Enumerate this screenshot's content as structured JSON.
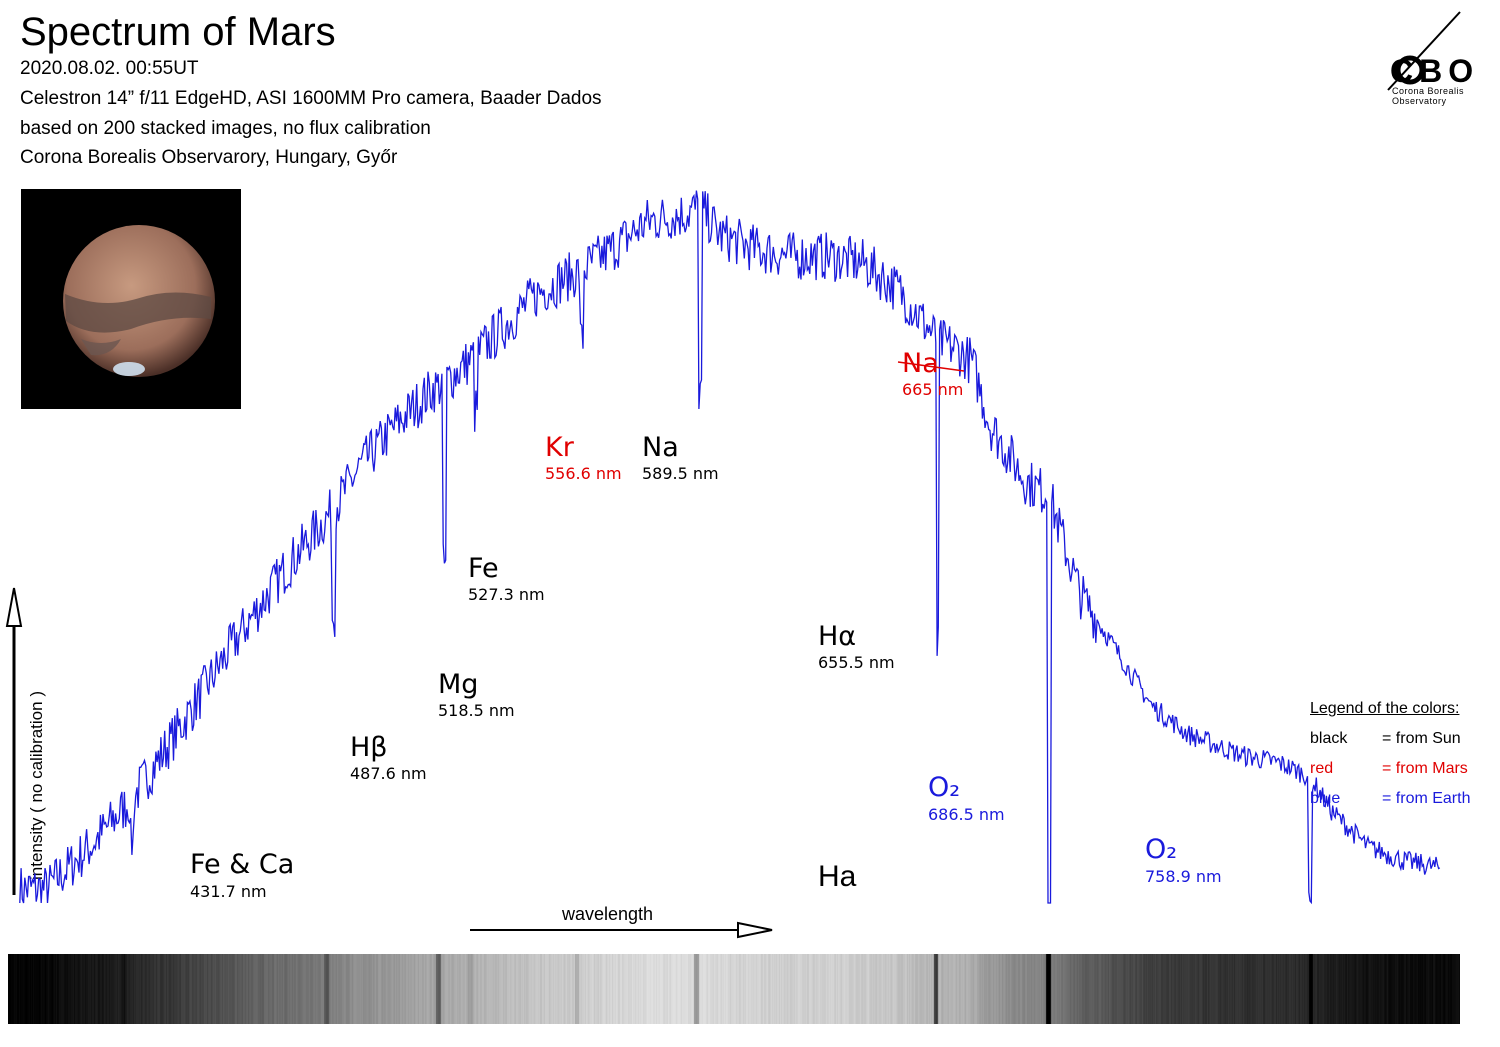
{
  "header": {
    "title": "Spectrum of Mars",
    "lines": [
      "2020.08.02.  00:55UT",
      "Celestron 14” f/11 EdgeHD, ASI 1600MM Pro camera, Baader Dados",
      "based on 200 stacked images, no flux calibration",
      "Corona Borealis Observarory, Hungary, Győr"
    ]
  },
  "logo": {
    "text": "CBO",
    "line1": "Corona Borealis",
    "line2": "Observatory"
  },
  "legend": {
    "title": "Legend of the colors:",
    "items": [
      {
        "key": "black",
        "value": "= from Sun",
        "color": "#000000"
      },
      {
        "key": "red",
        "value": "= from Mars",
        "color": "#e00000"
      },
      {
        "key": "blue",
        "value": "= from Earth",
        "color": "#1a1adc"
      }
    ]
  },
  "colors": {
    "spectrum": "#1a1adc",
    "sun": "#000000",
    "mars": "#e00000",
    "earth": "#1a1adc"
  },
  "chart_data": {
    "type": "line",
    "ylabel": "intensity ( no calibration )",
    "xlabel": "wavelength",
    "x_unit": "nm",
    "xlim": [
      400,
      800
    ],
    "ylim": [
      0,
      1
    ],
    "series": [
      {
        "x": [
          408,
          420,
          432,
          445,
          460,
          475,
          487.6,
          495,
          505,
          515,
          518.5,
          527.3,
          535,
          545,
          556.6,
          565,
          575,
          585,
          589.5,
          595,
          605,
          615,
          625,
          635,
          645,
          655.5,
          660,
          665,
          670,
          680,
          686.5,
          690,
          695,
          705,
          715,
          725,
          740,
          750,
          758.9,
          760,
          765,
          775,
          785,
          795
        ],
        "y": [
          0.02,
          0.08,
          0.15,
          0.25,
          0.37,
          0.48,
          0.56,
          0.62,
          0.68,
          0.73,
          0.74,
          0.78,
          0.82,
          0.87,
          0.9,
          0.93,
          0.97,
          0.98,
          0.99,
          0.95,
          0.93,
          0.92,
          0.92,
          0.91,
          0.87,
          0.8,
          0.79,
          0.77,
          0.68,
          0.6,
          0.58,
          0.52,
          0.44,
          0.36,
          0.28,
          0.24,
          0.21,
          0.2,
          0.18,
          0.17,
          0.13,
          0.08,
          0.06,
          0.05
        ]
      }
    ],
    "annotations": [
      {
        "label": "Fe & Ca",
        "value": "431.7 nm",
        "source": "sun",
        "wavelength": 431.7
      },
      {
        "label": "Hβ",
        "value": "487.6 nm",
        "source": "sun",
        "wavelength": 487.6
      },
      {
        "label": "Mg",
        "value": "518.5 nm",
        "source": "sun",
        "wavelength": 518.5
      },
      {
        "label": "Fe",
        "value": "527.3 nm",
        "source": "sun",
        "wavelength": 527.3
      },
      {
        "label": "Kr",
        "value": "556.6 nm",
        "source": "mars",
        "wavelength": 556.6
      },
      {
        "label": "Na",
        "value": "589.5 nm",
        "source": "sun",
        "wavelength": 589.5
      },
      {
        "label": "Hα",
        "value": "655.5 nm",
        "source": "sun",
        "wavelength": 655.5
      },
      {
        "label": "Na",
        "value": "665 nm",
        "source": "mars",
        "wavelength": 665
      },
      {
        "label": "O₂",
        "value": "686.5 nm",
        "source": "earth",
        "wavelength": 686.5
      },
      {
        "label": "O₂",
        "value": "758.9 nm",
        "source": "earth",
        "wavelength": 758.9
      }
    ],
    "extra_label": "Ha"
  }
}
